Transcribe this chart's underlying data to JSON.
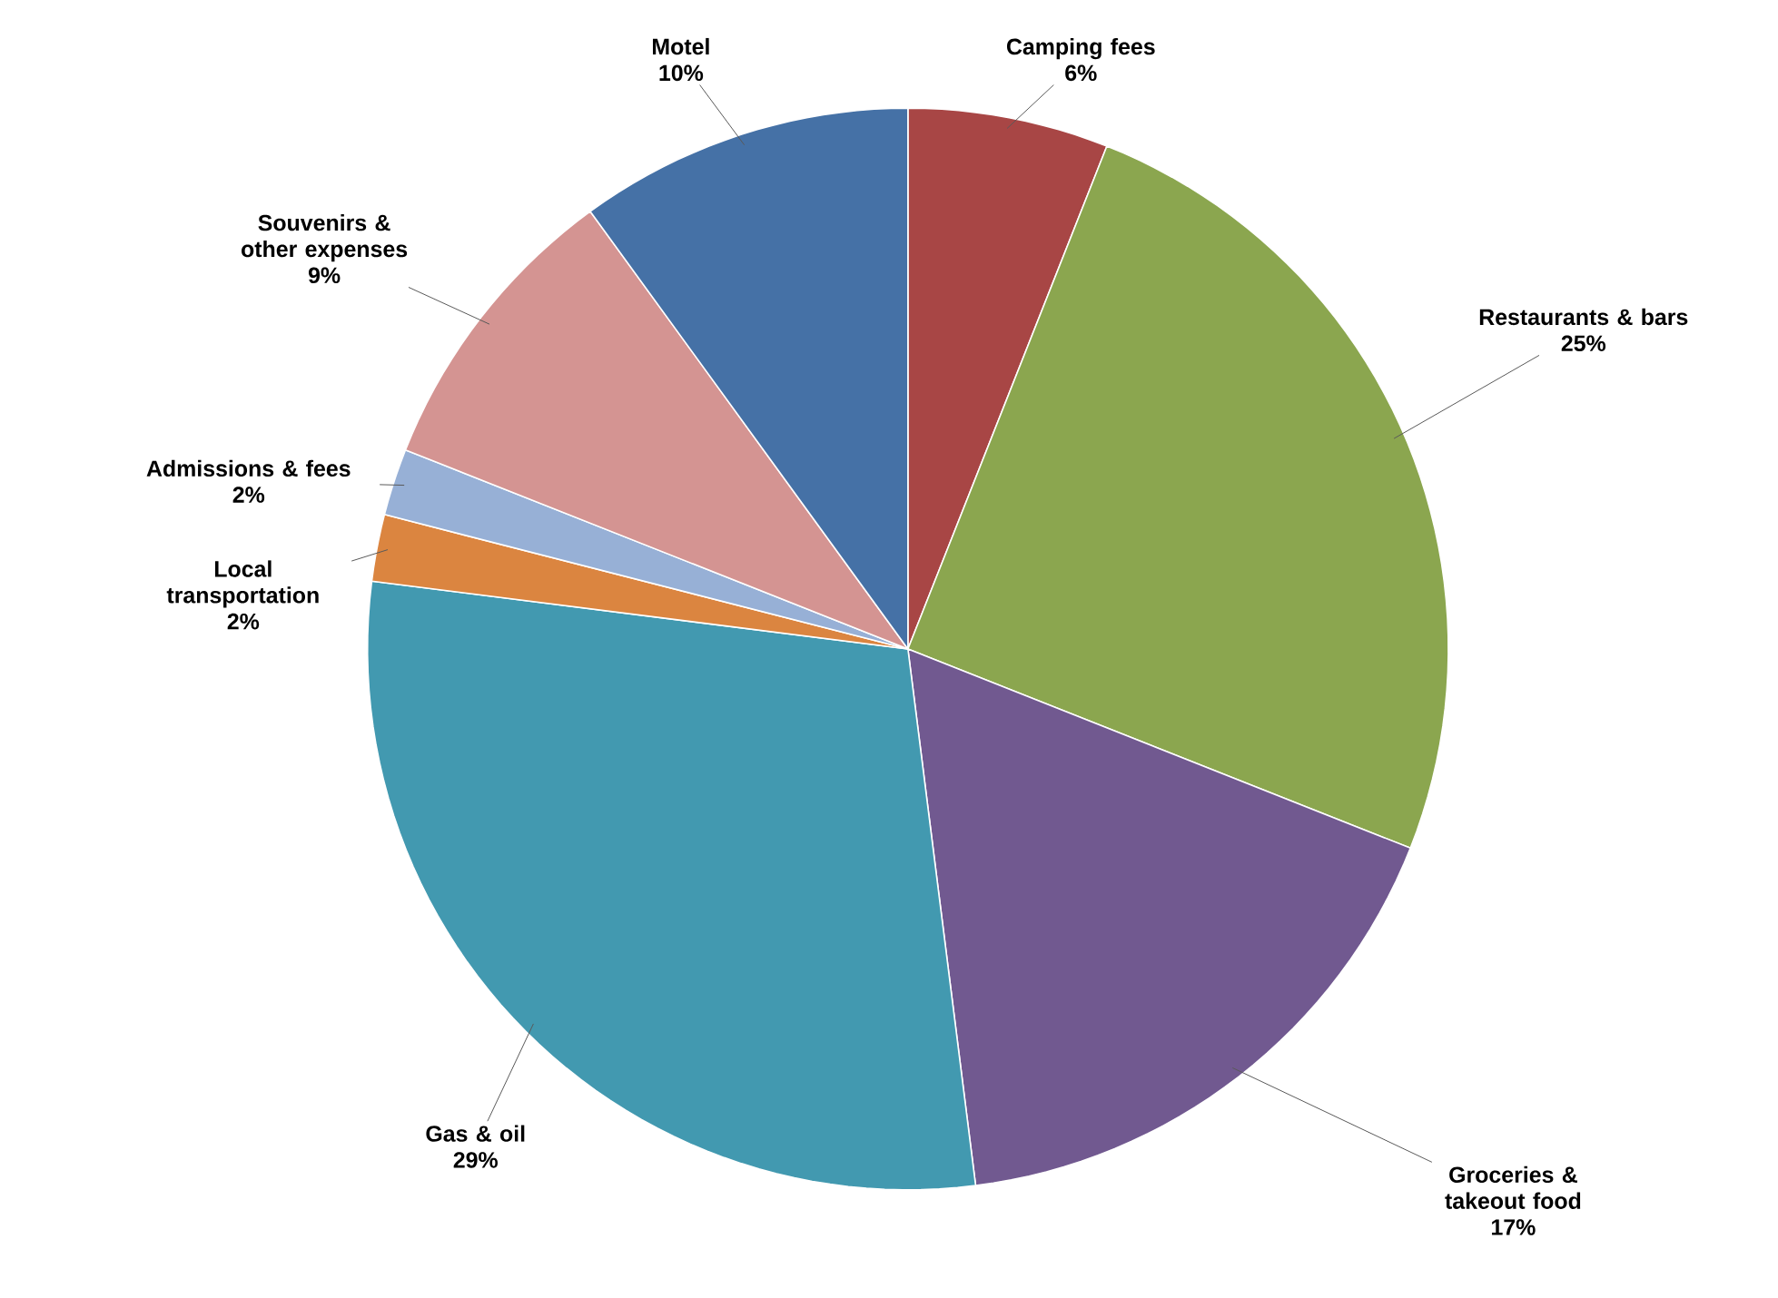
{
  "chart_data": {
    "type": "pie",
    "categories": [
      "Camping fees",
      "Restaurants & bars",
      "Groceries & takeout food",
      "Gas & oil",
      "Local transportation",
      "Admissions & fees",
      "Souvenirs & other expenses",
      "Motel"
    ],
    "values": [
      6,
      25,
      17,
      29,
      2,
      2,
      9,
      10
    ],
    "colors": [
      "#a84645",
      "#8ba64f",
      "#715990",
      "#4299b0",
      "#db8540",
      "#97b0d6",
      "#d49492",
      "#4571a6"
    ],
    "value_labels": [
      "6%",
      "25%",
      "17%",
      "29%",
      "2%",
      "2%",
      "9%",
      "10%"
    ]
  }
}
